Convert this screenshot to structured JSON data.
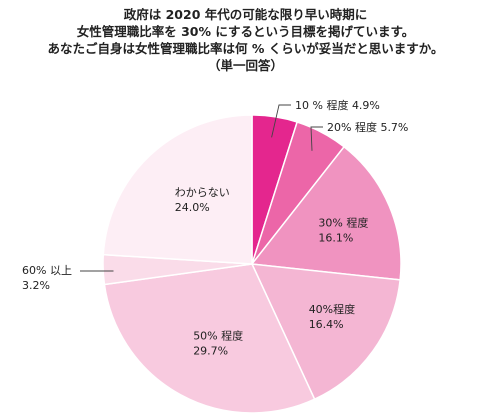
{
  "chart_data": {
    "type": "pie",
    "title_lines": [
      "政府は 2020 年代の可能な限り早い時期に",
      "女性管理職比率を 30% にするという目標を掲げています。",
      "あなたご自身は女性管理職比率は何 % くらいが妥当だと思いますか。",
      "（単一回答）"
    ],
    "start_angle_deg": 0,
    "direction": "clockwise",
    "slices": [
      {
        "name": "10 % 程度",
        "value": 4.9,
        "label_value": "4.9%",
        "color": "#E4268E",
        "label_style": "callout-right"
      },
      {
        "name": "20% 程度",
        "value": 5.7,
        "label_value": "5.7%",
        "color": "#EC66A8",
        "label_style": "callout-right"
      },
      {
        "name": "30% 程度",
        "value": 16.1,
        "label_value": "16.1%",
        "color": "#F093C0",
        "label_style": "inside"
      },
      {
        "name": "40%程度",
        "value": 16.4,
        "label_value": "16.4%",
        "color": "#F4B6D3",
        "label_style": "inside"
      },
      {
        "name": "50% 程度",
        "value": 29.7,
        "label_value": "29.7%",
        "color": "#F8CADF",
        "label_style": "inside"
      },
      {
        "name": "60% 以上",
        "value": 3.2,
        "label_value": "3.2%",
        "color": "#FADCE9",
        "label_style": "callout-left"
      },
      {
        "name": "わからない",
        "value": 24.0,
        "label_value": "24.0%",
        "color": "#FDEEF5",
        "label_style": "inside"
      }
    ],
    "legend": "none",
    "text_color": "#222222",
    "slice_border_color": "#FFFFFF"
  }
}
